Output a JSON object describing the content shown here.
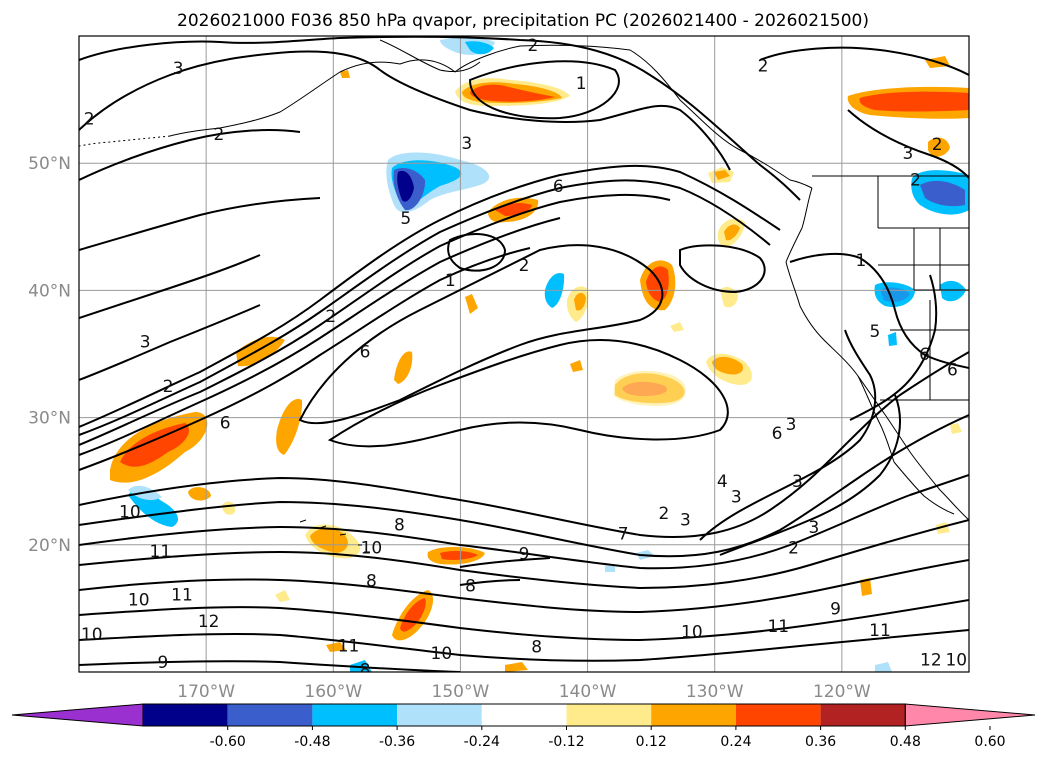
{
  "chart_data": {
    "type": "map",
    "title": "2026021000 F036 850 hPa qvapor, precipitation PC (2026021400 - 2026021500)",
    "xlim": [
      -180,
      -110
    ],
    "ylim": [
      10,
      60
    ],
    "grid": true,
    "lat_ticks": [
      {
        "value": 50,
        "label": "50°N"
      },
      {
        "value": 40,
        "label": "40°N"
      },
      {
        "value": 30,
        "label": "30°N"
      },
      {
        "value": 20,
        "label": "20°N"
      }
    ],
    "lon_ticks": [
      {
        "value": -170,
        "label": "170°W"
      },
      {
        "value": -160,
        "label": "160°W"
      },
      {
        "value": -150,
        "label": "150°W"
      },
      {
        "value": -140,
        "label": "140°W"
      },
      {
        "value": -130,
        "label": "130°W"
      },
      {
        "value": -120,
        "label": "120°W"
      }
    ],
    "colorbar": {
      "extend": "both",
      "ticks": [
        "-0.60",
        "-0.48",
        "-0.36",
        "-0.24",
        "-0.12",
        "0.12",
        "0.24",
        "0.36",
        "0.48",
        "0.60"
      ],
      "colors": [
        "#9b30d0",
        "#00008b",
        "#3a5fcd",
        "#00bfff",
        "#afe1fa",
        "#ffffff",
        "#ffeb8c",
        "#ffa500",
        "#ff4500",
        "#b22222",
        "#ff88aa"
      ]
    },
    "contour_labels": [
      {
        "text": "2",
        "lon": -144.3,
        "lat": 59.3
      },
      {
        "text": "3",
        "lon": -172.2,
        "lat": 57.5
      },
      {
        "text": "1",
        "lon": -140.5,
        "lat": 56.3
      },
      {
        "text": "2",
        "lon": -126.2,
        "lat": 57.7
      },
      {
        "text": "2",
        "lon": -179.2,
        "lat": 53.5
      },
      {
        "text": "2",
        "lon": -169.0,
        "lat": 52.3
      },
      {
        "text": "3",
        "lon": -149.5,
        "lat": 51.6
      },
      {
        "text": "3",
        "lon": -114.8,
        "lat": 50.8
      },
      {
        "text": "2",
        "lon": -112.5,
        "lat": 51.5
      },
      {
        "text": "2",
        "lon": -114.2,
        "lat": 48.7
      },
      {
        "text": "6",
        "lon": -142.3,
        "lat": 48.2
      },
      {
        "text": "5",
        "lon": -154.3,
        "lat": 45.7
      },
      {
        "text": "1",
        "lon": -150.8,
        "lat": 40.8
      },
      {
        "text": "1",
        "lon": -118.5,
        "lat": 42.4
      },
      {
        "text": "2",
        "lon": -145.0,
        "lat": 42.0
      },
      {
        "text": "2",
        "lon": -160.2,
        "lat": 38.0
      },
      {
        "text": "3",
        "lon": -174.8,
        "lat": 36.0
      },
      {
        "text": "2",
        "lon": -173.0,
        "lat": 32.5
      },
      {
        "text": "6",
        "lon": -157.5,
        "lat": 35.2
      },
      {
        "text": "5",
        "lon": -117.4,
        "lat": 36.8
      },
      {
        "text": "6",
        "lon": -113.5,
        "lat": 35.0
      },
      {
        "text": "6",
        "lon": -111.3,
        "lat": 33.8
      },
      {
        "text": "6",
        "lon": -168.5,
        "lat": 29.6
      },
      {
        "text": "6",
        "lon": -125.1,
        "lat": 28.8
      },
      {
        "text": "3",
        "lon": -124.0,
        "lat": 29.5
      },
      {
        "text": "4",
        "lon": -129.4,
        "lat": 25.0
      },
      {
        "text": "3",
        "lon": -128.3,
        "lat": 23.8
      },
      {
        "text": "3",
        "lon": -123.5,
        "lat": 25.0
      },
      {
        "text": "3",
        "lon": -132.3,
        "lat": 22.0
      },
      {
        "text": "2",
        "lon": -134.0,
        "lat": 22.5
      },
      {
        "text": "3",
        "lon": -122.2,
        "lat": 21.4
      },
      {
        "text": "2",
        "lon": -123.8,
        "lat": 19.8
      },
      {
        "text": "10",
        "lon": -176.0,
        "lat": 22.6
      },
      {
        "text": "8",
        "lon": -154.8,
        "lat": 21.6
      },
      {
        "text": "10",
        "lon": -157.0,
        "lat": 19.8
      },
      {
        "text": "7",
        "lon": -137.2,
        "lat": 20.9
      },
      {
        "text": "9",
        "lon": -145.0,
        "lat": 19.3
      },
      {
        "text": "11",
        "lon": -173.6,
        "lat": 19.5
      },
      {
        "text": "8",
        "lon": -157.0,
        "lat": 17.2
      },
      {
        "text": "8",
        "lon": -149.2,
        "lat": 16.8
      },
      {
        "text": "10",
        "lon": -175.3,
        "lat": 15.7
      },
      {
        "text": "11",
        "lon": -171.9,
        "lat": 16.1
      },
      {
        "text": "9",
        "lon": -120.5,
        "lat": 15.0
      },
      {
        "text": "12",
        "lon": -169.8,
        "lat": 14.0
      },
      {
        "text": "10",
        "lon": -131.8,
        "lat": 13.2
      },
      {
        "text": "11",
        "lon": -125.0,
        "lat": 13.6
      },
      {
        "text": "11",
        "lon": -117.0,
        "lat": 13.3
      },
      {
        "text": "10",
        "lon": -179.0,
        "lat": 13.0
      },
      {
        "text": "11",
        "lon": -158.8,
        "lat": 12.1
      },
      {
        "text": "10",
        "lon": -151.5,
        "lat": 11.5
      },
      {
        "text": "8",
        "lon": -144.0,
        "lat": 12.0
      },
      {
        "text": "12",
        "lon": -113.0,
        "lat": 11.0
      },
      {
        "text": "10",
        "lon": -111.0,
        "lat": 11.0
      },
      {
        "text": "9",
        "lon": -173.4,
        "lat": 10.8
      },
      {
        "text": "8",
        "lon": -157.5,
        "lat": 10.2
      }
    ]
  }
}
